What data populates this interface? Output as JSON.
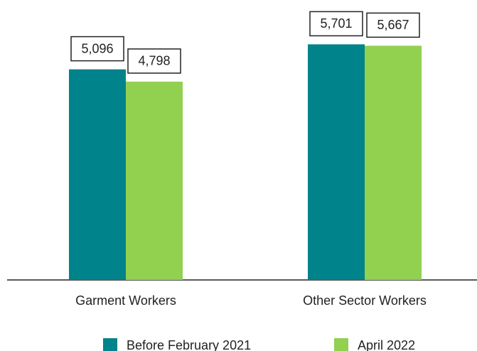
{
  "chart_data": {
    "type": "bar",
    "categories": [
      "Garment Workers",
      "Other Sector Workers"
    ],
    "series": [
      {
        "name": "Before February 2021",
        "color": "#00838a",
        "values": [
          5096,
          5701
        ],
        "value_labels": [
          "5,096",
          "5,701"
        ]
      },
      {
        "name": "April 2022",
        "color": "#92d050",
        "values": [
          4798,
          5667
        ],
        "value_labels": [
          "4,798",
          "5,667"
        ]
      }
    ],
    "ylim": [
      0,
      6000
    ],
    "grid": false,
    "legend": "bottom"
  }
}
